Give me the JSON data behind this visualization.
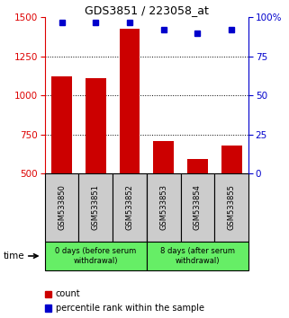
{
  "title": "GDS3851 / 223058_at",
  "samples": [
    "GSM533850",
    "GSM533851",
    "GSM533852",
    "GSM533853",
    "GSM533854",
    "GSM533855"
  ],
  "counts": [
    1120,
    1110,
    1430,
    710,
    590,
    680
  ],
  "percentiles": [
    97,
    97,
    97,
    92,
    90,
    92
  ],
  "left_ylim": [
    500,
    1500
  ],
  "right_ylim": [
    0,
    100
  ],
  "left_yticks": [
    500,
    750,
    1000,
    1250,
    1500
  ],
  "right_yticks": [
    0,
    25,
    50,
    75,
    100
  ],
  "right_yticklabels": [
    "0",
    "25",
    "50",
    "75",
    "100%"
  ],
  "bar_color": "#cc0000",
  "dot_color": "#0000cc",
  "group1_label": "0 days (before serum\nwithdrawal)",
  "group2_label": "8 days (after serum\nwithdrawal)",
  "group_box_color": "#66ee66",
  "sample_box_color": "#cccccc",
  "legend_count_label": "count",
  "legend_pct_label": "percentile rank within the sample",
  "time_label": "time",
  "left_axis_color": "#dd0000",
  "right_axis_color": "#0000cc",
  "dotted_yticks": [
    750,
    1000,
    1250
  ],
  "bar_width": 0.6
}
